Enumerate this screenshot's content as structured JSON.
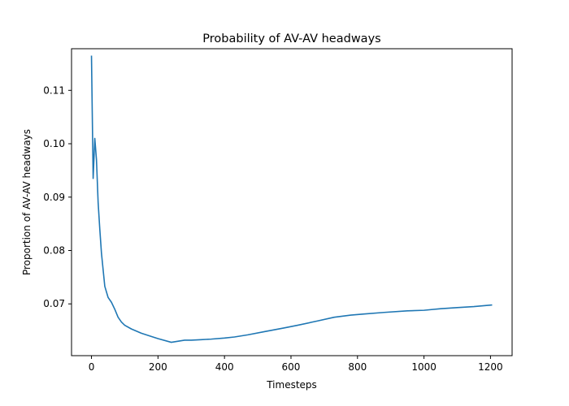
{
  "chart_data": {
    "type": "line",
    "title": "Probability of AV-AV headways",
    "xlabel": "Timesteps",
    "ylabel": "Proportion of AV-AV headways",
    "xlim": [
      -60,
      1265
    ],
    "ylim": [
      0.0603,
      0.1178
    ],
    "xticks": [
      0,
      200,
      400,
      600,
      800,
      1000,
      1200
    ],
    "xtick_labels": [
      "0",
      "200",
      "400",
      "600",
      "800",
      "1000",
      "1200"
    ],
    "yticks": [
      0.07,
      0.08,
      0.09,
      0.1,
      0.11
    ],
    "ytick_labels": [
      "0.07",
      "0.08",
      "0.09",
      "0.10",
      "0.11"
    ],
    "grid": false,
    "series": [
      {
        "color": "#1f77b4",
        "x": [
          0,
          5,
          10,
          15,
          20,
          25,
          30,
          40,
          50,
          60,
          70,
          80,
          90,
          100,
          120,
          150,
          180,
          200,
          240,
          280,
          300,
          330,
          360,
          400,
          430,
          470,
          520,
          580,
          620,
          680,
          730,
          780,
          820,
          880,
          950,
          1000,
          1050,
          1100,
          1150,
          1205
        ],
        "y": [
          0.1165,
          0.0935,
          0.101,
          0.097,
          0.089,
          0.084,
          0.0795,
          0.0733,
          0.0712,
          0.0703,
          0.069,
          0.0675,
          0.0666,
          0.066,
          0.0653,
          0.0645,
          0.0639,
          0.0635,
          0.0628,
          0.0632,
          0.0632,
          0.0633,
          0.0634,
          0.0636,
          0.0638,
          0.0642,
          0.0648,
          0.0655,
          0.066,
          0.0668,
          0.0675,
          0.0679,
          0.0681,
          0.0684,
          0.0687,
          0.0688,
          0.0691,
          0.0693,
          0.0695,
          0.0698
        ]
      }
    ]
  }
}
